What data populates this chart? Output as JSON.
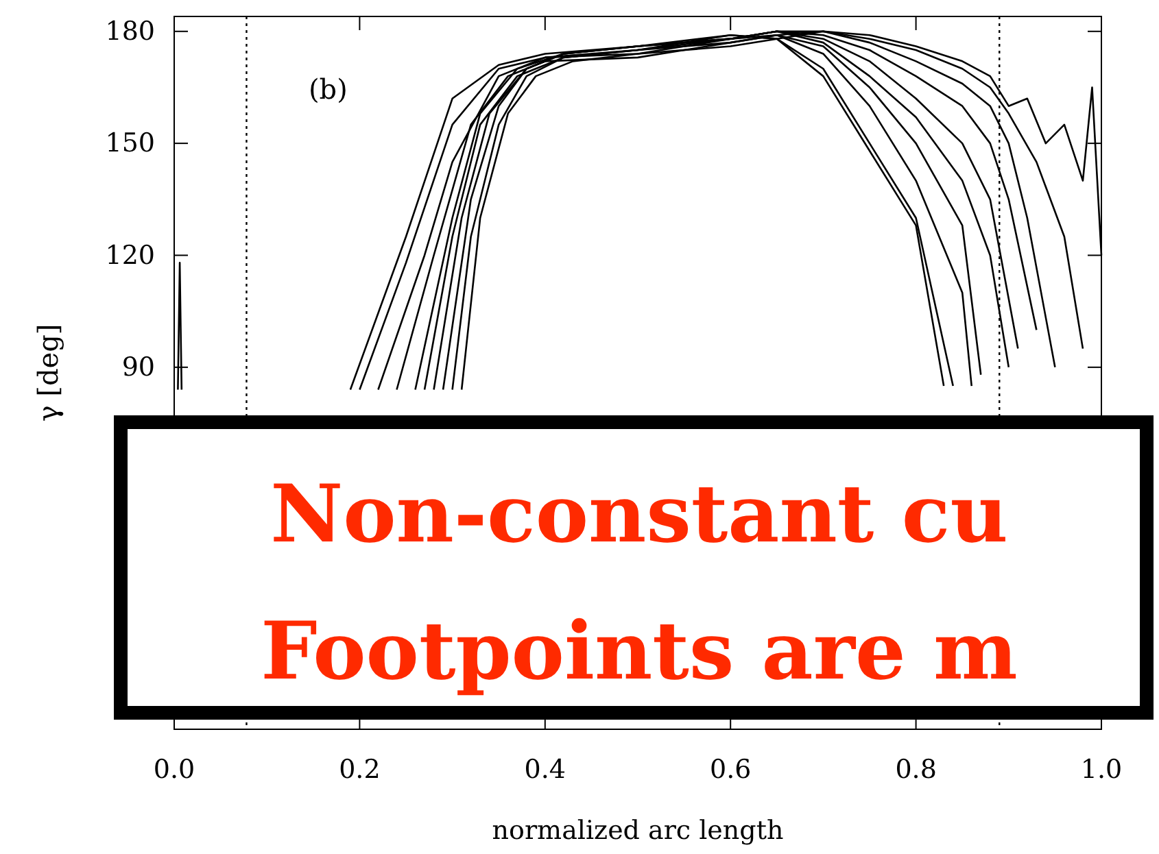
{
  "chart_data": {
    "type": "line",
    "xlabel": "normalized arc length",
    "ylabel": "γ [deg]",
    "annotations": [
      "(b)",
      "Non-constant cu",
      "Footpoints are m"
    ],
    "xlim": [
      0,
      1
    ],
    "xticks": [
      {
        "value": 0,
        "label": "0.0"
      },
      {
        "value": 0.2,
        "label": "0.2"
      },
      {
        "value": 0.4,
        "label": "0.4"
      },
      {
        "value": 0.6,
        "label": "0.6"
      },
      {
        "value": 0.8,
        "label": "0.8"
      },
      {
        "value": 1,
        "label": "1.0"
      }
    ],
    "ylim": [
      -7,
      184
    ],
    "yticks": [
      90,
      120,
      150,
      180
    ],
    "marker": "none",
    "line_style": "solid",
    "ref_lines": [
      {
        "axis": "x",
        "value": 0.078,
        "line_style": "dotted"
      },
      {
        "axis": "x",
        "value": 0.89,
        "line_style": "dotted"
      }
    ],
    "series": [
      {
        "color": "#000000",
        "x": [
          0.19,
          0.25,
          0.3,
          0.35,
          0.4,
          0.5,
          0.6,
          0.65,
          0.7,
          0.75,
          0.8,
          0.83
        ],
        "values": [
          84,
          125,
          162,
          171,
          174,
          176,
          179,
          178,
          168,
          148,
          128,
          85
        ]
      },
      {
        "color": "#000000",
        "x": [
          0.2,
          0.25,
          0.3,
          0.35,
          0.4,
          0.5,
          0.6,
          0.65,
          0.7,
          0.75,
          0.8,
          0.84
        ],
        "values": [
          84,
          118,
          155,
          170,
          173,
          175,
          179,
          178,
          170,
          150,
          130,
          85
        ]
      },
      {
        "color": "#000000",
        "x": [
          0.22,
          0.27,
          0.3,
          0.35,
          0.4,
          0.5,
          0.6,
          0.65,
          0.7,
          0.75,
          0.8,
          0.85,
          0.86
        ],
        "values": [
          84,
          120,
          145,
          168,
          173,
          174,
          178,
          179,
          174,
          160,
          140,
          110,
          85
        ]
      },
      {
        "color": "#000000",
        "x": [
          0.24,
          0.28,
          0.32,
          0.36,
          0.4,
          0.5,
          0.6,
          0.65,
          0.7,
          0.75,
          0.8,
          0.85,
          0.87
        ],
        "values": [
          84,
          120,
          155,
          168,
          172,
          173,
          177,
          179,
          176,
          165,
          150,
          128,
          88
        ]
      },
      {
        "color": "#000000",
        "x": [
          0.26,
          0.3,
          0.33,
          0.37,
          0.42,
          0.5,
          0.6,
          0.65,
          0.7,
          0.75,
          0.8,
          0.85,
          0.88,
          0.9
        ],
        "values": [
          84,
          130,
          158,
          170,
          174,
          176,
          178,
          180,
          177,
          168,
          157,
          140,
          120,
          90
        ]
      },
      {
        "color": "#000000",
        "x": [
          0.27,
          0.3,
          0.33,
          0.37,
          0.42,
          0.5,
          0.6,
          0.65,
          0.7,
          0.75,
          0.8,
          0.85,
          0.88,
          0.91
        ],
        "values": [
          84,
          125,
          155,
          168,
          173,
          175,
          178,
          180,
          178,
          172,
          162,
          150,
          135,
          95
        ]
      },
      {
        "color": "#000000",
        "x": [
          0.28,
          0.31,
          0.34,
          0.38,
          0.42,
          0.5,
          0.6,
          0.65,
          0.7,
          0.75,
          0.8,
          0.85,
          0.88,
          0.9,
          0.93
        ],
        "values": [
          84,
          130,
          158,
          170,
          174,
          176,
          178,
          180,
          179,
          175,
          168,
          160,
          150,
          135,
          100
        ]
      },
      {
        "color": "#000000",
        "x": [
          0.29,
          0.32,
          0.35,
          0.38,
          0.42,
          0.5,
          0.6,
          0.65,
          0.7,
          0.75,
          0.8,
          0.85,
          0.88,
          0.9,
          0.92,
          0.95
        ],
        "values": [
          84,
          135,
          160,
          170,
          174,
          176,
          178,
          180,
          180,
          177,
          172,
          166,
          160,
          150,
          130,
          90
        ]
      },
      {
        "color": "#000000",
        "x": [
          0.3,
          0.32,
          0.35,
          0.38,
          0.42,
          0.5,
          0.6,
          0.65,
          0.7,
          0.75,
          0.8,
          0.85,
          0.88,
          0.9,
          0.93,
          0.96,
          0.98
        ],
        "values": [
          84,
          125,
          155,
          168,
          173,
          175,
          177,
          179,
          180,
          178,
          175,
          170,
          165,
          158,
          145,
          125,
          95
        ]
      },
      {
        "color": "#000000",
        "x": [
          0.31,
          0.33,
          0.36,
          0.39,
          0.43,
          0.5,
          0.6,
          0.65,
          0.7,
          0.75,
          0.8,
          0.85,
          0.88,
          0.9,
          0.92,
          0.94,
          0.96,
          0.98,
          0.99,
          1.0
        ],
        "values": [
          84,
          130,
          158,
          168,
          172,
          174,
          176,
          178,
          180,
          179,
          176,
          172,
          168,
          160,
          162,
          150,
          155,
          140,
          165,
          120
        ]
      },
      {
        "color": "#000000",
        "x": [
          0.004,
          0.006,
          0.008
        ],
        "values": [
          84,
          118,
          84
        ]
      }
    ]
  }
}
